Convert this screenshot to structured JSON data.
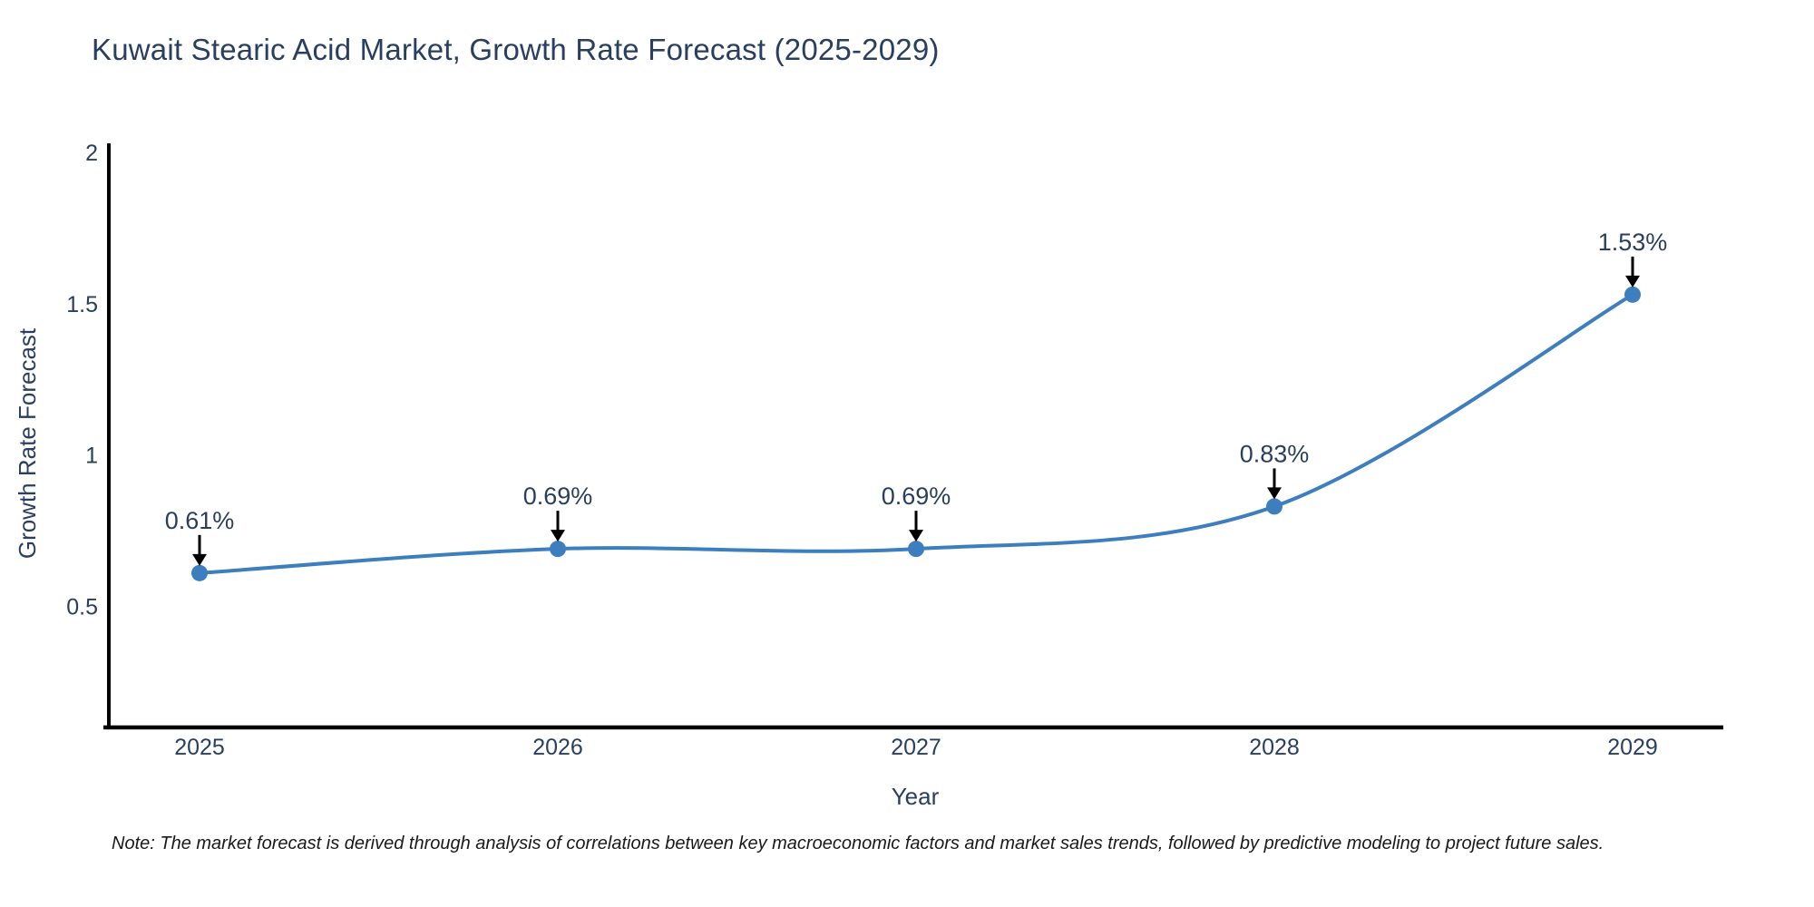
{
  "title": "Kuwait Stearic Acid Market, Growth Rate Forecast (2025-2029)",
  "note": "Note: The market forecast is derived through analysis of correlations between key macroeconomic factors and market sales trends, followed by predictive modeling to project future sales.",
  "chart_data": {
    "type": "line",
    "mode": "lines+markers",
    "curve": "spline",
    "title": "Kuwait Stearic Acid Market, Growth Rate Forecast (2025-2029)",
    "xlabel": "Year",
    "ylabel": "Growth Rate Forecast",
    "x": [
      2025,
      2026,
      2027,
      2028,
      2029
    ],
    "values": [
      0.61,
      0.69,
      0.69,
      0.83,
      1.53
    ],
    "point_labels": [
      "0.61%",
      "0.69%",
      "0.69%",
      "0.83%",
      "1.53%"
    ],
    "ylim": [
      0.1,
      2.03
    ],
    "yticks": [
      0.5,
      1,
      1.5,
      2
    ],
    "ytick_labels": [
      "0.5",
      "1",
      "1.5",
      "2"
    ],
    "grid": false,
    "legend": "none",
    "line_color": "#3d7ebf",
    "marker_color": "#3d7ebf",
    "axis_color": "#000000",
    "annotation_arrow_color": "#000000",
    "tick_color": "#2a3f5f"
  },
  "colors": {
    "background": "#ffffff",
    "title": "#2a3f5f",
    "note": "#1a1a1a"
  }
}
